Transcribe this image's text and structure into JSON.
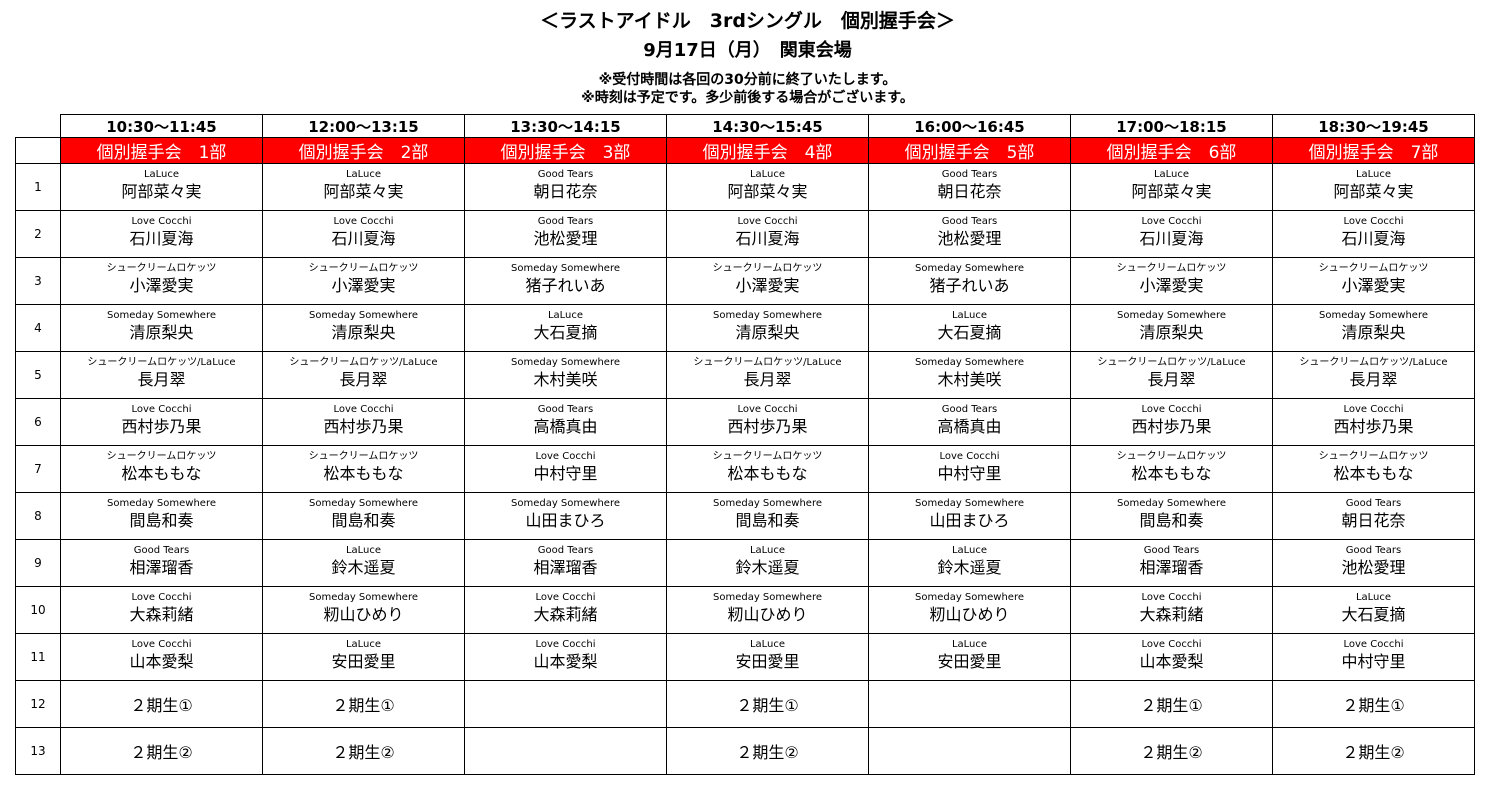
{
  "header": {
    "title": "＜ラストアイドル　3rdシングル　個別握手会＞",
    "date": "9月17日（月）　関東会場",
    "note1": "※受付時間は各回の30分前に終了いたします。",
    "note2": "※時刻は予定です。多少前後する場合がございます。"
  },
  "accent_color": "#ff0000",
  "slots": [
    {
      "time": "10:30～11:45",
      "part": "個別握手会　1部"
    },
    {
      "time": "12:00～13:15",
      "part": "個別握手会　2部"
    },
    {
      "time": "13:30～14:15",
      "part": "個別握手会　3部"
    },
    {
      "time": "14:30～15:45",
      "part": "個別握手会　4部"
    },
    {
      "time": "16:00～16:45",
      "part": "個別握手会　5部"
    },
    {
      "time": "17:00～18:15",
      "part": "個別握手会　6部"
    },
    {
      "time": "18:30～19:45",
      "part": "個別握手会　7部"
    }
  ],
  "rows": [
    {
      "num": "1",
      "cells": [
        {
          "group": "LaLuce",
          "name": "阿部菜々実"
        },
        {
          "group": "LaLuce",
          "name": "阿部菜々実"
        },
        {
          "group": "Good Tears",
          "name": "朝日花奈"
        },
        {
          "group": "LaLuce",
          "name": "阿部菜々実"
        },
        {
          "group": "Good Tears",
          "name": "朝日花奈"
        },
        {
          "group": "LaLuce",
          "name": "阿部菜々実"
        },
        {
          "group": "LaLuce",
          "name": "阿部菜々実"
        }
      ]
    },
    {
      "num": "2",
      "cells": [
        {
          "group": "Love Cocchi",
          "name": "石川夏海"
        },
        {
          "group": "Love Cocchi",
          "name": "石川夏海"
        },
        {
          "group": "Good Tears",
          "name": "池松愛理"
        },
        {
          "group": "Love Cocchi",
          "name": "石川夏海"
        },
        {
          "group": "Good Tears",
          "name": "池松愛理"
        },
        {
          "group": "Love Cocchi",
          "name": "石川夏海"
        },
        {
          "group": "Love Cocchi",
          "name": "石川夏海"
        }
      ]
    },
    {
      "num": "3",
      "cells": [
        {
          "group": "シュークリームロケッツ",
          "name": "小澤愛実"
        },
        {
          "group": "シュークリームロケッツ",
          "name": "小澤愛実"
        },
        {
          "group": "Someday Somewhere",
          "name": "猪子れいあ"
        },
        {
          "group": "シュークリームロケッツ",
          "name": "小澤愛実"
        },
        {
          "group": "Someday Somewhere",
          "name": "猪子れいあ"
        },
        {
          "group": "シュークリームロケッツ",
          "name": "小澤愛実"
        },
        {
          "group": "シュークリームロケッツ",
          "name": "小澤愛実"
        }
      ]
    },
    {
      "num": "4",
      "cells": [
        {
          "group": "Someday Somewhere",
          "name": "清原梨央"
        },
        {
          "group": "Someday Somewhere",
          "name": "清原梨央"
        },
        {
          "group": "LaLuce",
          "name": "大石夏摘"
        },
        {
          "group": "Someday Somewhere",
          "name": "清原梨央"
        },
        {
          "group": "LaLuce",
          "name": "大石夏摘"
        },
        {
          "group": "Someday Somewhere",
          "name": "清原梨央"
        },
        {
          "group": "Someday Somewhere",
          "name": "清原梨央"
        }
      ]
    },
    {
      "num": "5",
      "cells": [
        {
          "group": "シュークリームロケッツ/LaLuce",
          "name": "長月翠"
        },
        {
          "group": "シュークリームロケッツ/LaLuce",
          "name": "長月翠"
        },
        {
          "group": "Someday Somewhere",
          "name": "木村美咲"
        },
        {
          "group": "シュークリームロケッツ/LaLuce",
          "name": "長月翠"
        },
        {
          "group": "Someday Somewhere",
          "name": "木村美咲"
        },
        {
          "group": "シュークリームロケッツ/LaLuce",
          "name": "長月翠"
        },
        {
          "group": "シュークリームロケッツ/LaLuce",
          "name": "長月翠"
        }
      ]
    },
    {
      "num": "6",
      "cells": [
        {
          "group": "Love Cocchi",
          "name": "西村歩乃果"
        },
        {
          "group": "Love Cocchi",
          "name": "西村歩乃果"
        },
        {
          "group": "Good Tears",
          "name": "高橋真由"
        },
        {
          "group": "Love Cocchi",
          "name": "西村歩乃果"
        },
        {
          "group": "Good Tears",
          "name": "高橋真由"
        },
        {
          "group": "Love Cocchi",
          "name": "西村歩乃果"
        },
        {
          "group": "Love Cocchi",
          "name": "西村歩乃果"
        }
      ]
    },
    {
      "num": "7",
      "cells": [
        {
          "group": "シュークリームロケッツ",
          "name": "松本ももな"
        },
        {
          "group": "シュークリームロケッツ",
          "name": "松本ももな"
        },
        {
          "group": "Love Cocchi",
          "name": "中村守里"
        },
        {
          "group": "シュークリームロケッツ",
          "name": "松本ももな"
        },
        {
          "group": "Love Cocchi",
          "name": "中村守里"
        },
        {
          "group": "シュークリームロケッツ",
          "name": "松本ももな"
        },
        {
          "group": "シュークリームロケッツ",
          "name": "松本ももな"
        }
      ]
    },
    {
      "num": "8",
      "cells": [
        {
          "group": "Someday Somewhere",
          "name": "間島和奏"
        },
        {
          "group": "Someday Somewhere",
          "name": "間島和奏"
        },
        {
          "group": "Someday Somewhere",
          "name": "山田まひろ"
        },
        {
          "group": "Someday Somewhere",
          "name": "間島和奏"
        },
        {
          "group": "Someday Somewhere",
          "name": "山田まひろ"
        },
        {
          "group": "Someday Somewhere",
          "name": "間島和奏"
        },
        {
          "group": "Good Tears",
          "name": "朝日花奈"
        }
      ]
    },
    {
      "num": "9",
      "cells": [
        {
          "group": "Good Tears",
          "name": "相澤瑠香"
        },
        {
          "group": "LaLuce",
          "name": "鈴木遥夏"
        },
        {
          "group": "Good Tears",
          "name": "相澤瑠香"
        },
        {
          "group": "LaLuce",
          "name": "鈴木遥夏"
        },
        {
          "group": "LaLuce",
          "name": "鈴木遥夏"
        },
        {
          "group": "Good Tears",
          "name": "相澤瑠香"
        },
        {
          "group": "Good Tears",
          "name": "池松愛理"
        }
      ]
    },
    {
      "num": "10",
      "cells": [
        {
          "group": "Love Cocchi",
          "name": "大森莉緒"
        },
        {
          "group": "Someday Somewhere",
          "name": "籾山ひめり"
        },
        {
          "group": "Love Cocchi",
          "name": "大森莉緒"
        },
        {
          "group": "Someday Somewhere",
          "name": "籾山ひめり"
        },
        {
          "group": "Someday Somewhere",
          "name": "籾山ひめり"
        },
        {
          "group": "Love Cocchi",
          "name": "大森莉緒"
        },
        {
          "group": "LaLuce",
          "name": "大石夏摘"
        }
      ]
    },
    {
      "num": "11",
      "cells": [
        {
          "group": "Love Cocchi",
          "name": "山本愛梨"
        },
        {
          "group": "LaLuce",
          "name": "安田愛里"
        },
        {
          "group": "Love Cocchi",
          "name": "山本愛梨"
        },
        {
          "group": "LaLuce",
          "name": "安田愛里"
        },
        {
          "group": "LaLuce",
          "name": "安田愛里"
        },
        {
          "group": "Love Cocchi",
          "name": "山本愛梨"
        },
        {
          "group": "Love Cocchi",
          "name": "中村守里"
        }
      ]
    },
    {
      "num": "12",
      "cells": [
        {
          "text": "２期生①"
        },
        {
          "text": "２期生①"
        },
        {
          "text": ""
        },
        {
          "text": "２期生①"
        },
        {
          "text": ""
        },
        {
          "text": "２期生①"
        },
        {
          "text": "２期生①"
        }
      ]
    },
    {
      "num": "13",
      "cells": [
        {
          "text": "２期生②"
        },
        {
          "text": "２期生②"
        },
        {
          "text": ""
        },
        {
          "text": "２期生②"
        },
        {
          "text": ""
        },
        {
          "text": "２期生②"
        },
        {
          "text": "２期生②"
        }
      ]
    }
  ]
}
